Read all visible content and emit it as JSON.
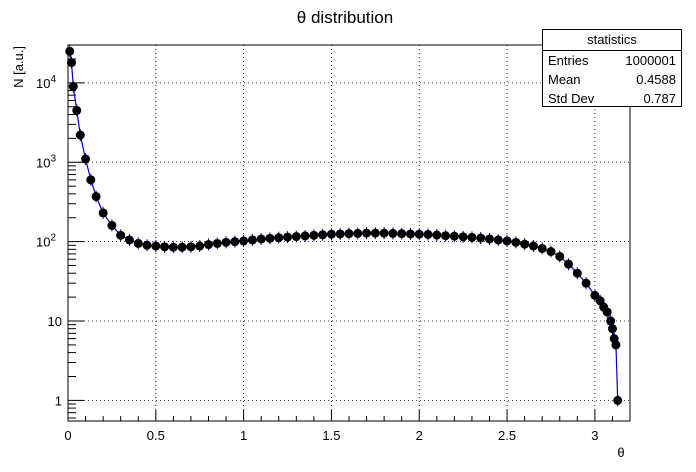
{
  "chart_data": {
    "type": "scatter",
    "title": "θ distribution",
    "xlabel": "θ",
    "ylabel": "N [a.u.]",
    "xlim": [
      0,
      3.2
    ],
    "ylim": [
      0.55,
      30000
    ],
    "yscale": "log",
    "grid": true,
    "x_ticks": [
      "0",
      "0.5",
      "1",
      "1.5",
      "2",
      "2.5",
      "3"
    ],
    "x_tick_values": [
      0,
      0.5,
      1,
      1.5,
      2,
      2.5,
      3
    ],
    "y_ticks": [
      "1",
      "10",
      "10^2",
      "10^3",
      "10^4"
    ],
    "y_tick_values": [
      1,
      10,
      100,
      1000,
      10000
    ],
    "marker_color": "#000000",
    "line_color": "#0000cc",
    "series": [
      {
        "x": [
          0.01,
          0.02,
          0.03,
          0.05,
          0.07,
          0.1,
          0.13,
          0.16,
          0.2,
          0.25,
          0.3,
          0.35,
          0.4,
          0.45,
          0.5,
          0.55,
          0.6,
          0.65,
          0.7,
          0.75,
          0.8,
          0.85,
          0.9,
          0.95,
          1.0,
          1.05,
          1.1,
          1.15,
          1.2,
          1.25,
          1.3,
          1.35,
          1.4,
          1.45,
          1.5,
          1.55,
          1.6,
          1.65,
          1.7,
          1.75,
          1.8,
          1.85,
          1.9,
          1.95,
          2.0,
          2.05,
          2.1,
          2.15,
          2.2,
          2.25,
          2.3,
          2.35,
          2.4,
          2.45,
          2.5,
          2.55,
          2.6,
          2.65,
          2.7,
          2.75,
          2.8,
          2.85,
          2.9,
          2.95,
          3.0,
          3.03,
          3.05,
          3.07,
          3.09,
          3.1,
          3.11,
          3.12,
          3.13
        ],
        "y": [
          25000,
          18000,
          9000,
          4500,
          2200,
          1100,
          600,
          370,
          230,
          160,
          120,
          105,
          95,
          90,
          88,
          86,
          85,
          85,
          86,
          88,
          92,
          95,
          98,
          100,
          102,
          105,
          108,
          110,
          112,
          114,
          116,
          118,
          120,
          122,
          124,
          125,
          126,
          127,
          128,
          128,
          128,
          127,
          126,
          125,
          124,
          123,
          121,
          119,
          117,
          115,
          113,
          111,
          108,
          105,
          102,
          98,
          93,
          88,
          82,
          75,
          65,
          52,
          40,
          30,
          21,
          18,
          15,
          13,
          10,
          8,
          6,
          5,
          1
        ]
      }
    ]
  },
  "stats": {
    "title": "statistics",
    "rows": [
      {
        "label": "Entries",
        "value": "1000001"
      },
      {
        "label": "Mean",
        "value": "0.4588"
      },
      {
        "label": "Std Dev",
        "value": "0.787"
      }
    ]
  }
}
